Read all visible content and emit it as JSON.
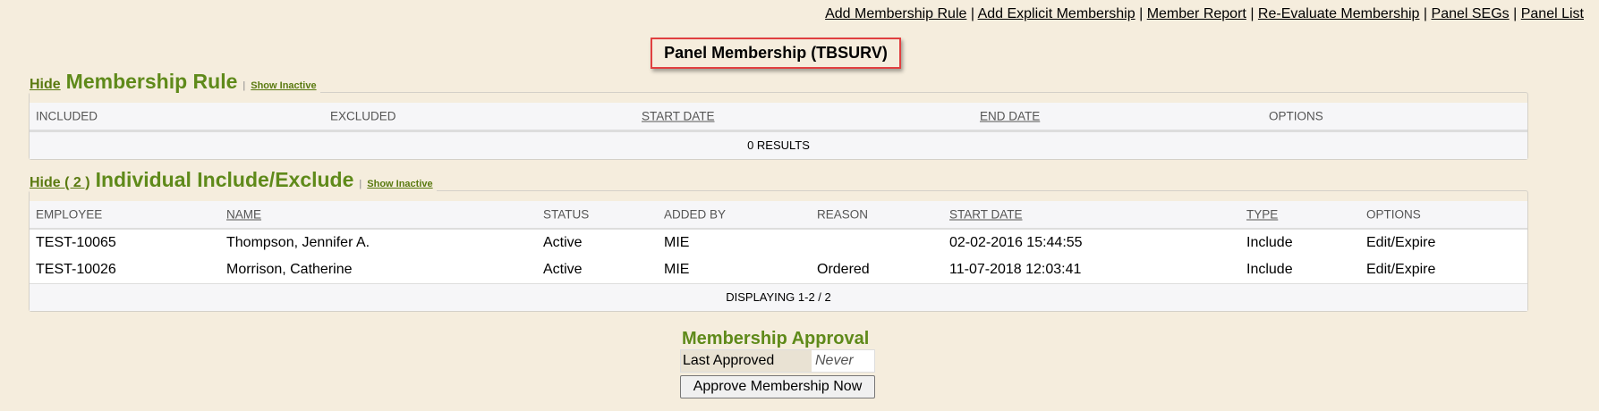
{
  "top_links": [
    "Add Membership Rule",
    "Add Explicit Membership",
    "Member Report",
    "Re-Evaluate Membership",
    "Panel SEGs",
    "Panel List"
  ],
  "separator": "|",
  "page_title": "Panel Membership (TBSURV)",
  "rule_section": {
    "hide": "Hide",
    "title": "Membership Rule",
    "show_inactive": "Show Inactive",
    "columns": [
      "INCLUDED",
      "EXCLUDED",
      "START DATE",
      "END DATE",
      "OPTIONS"
    ],
    "footer": "0 RESULTS"
  },
  "individual_section": {
    "hide": "Hide ( 2 )",
    "title": "Individual Include/Exclude",
    "show_inactive": "Show Inactive",
    "columns": [
      "EMPLOYEE",
      "NAME",
      "STATUS",
      "ADDED BY",
      "REASON",
      "START DATE",
      "TYPE",
      "OPTIONS"
    ],
    "rows": [
      [
        "TEST-10065",
        "Thompson, Jennifer A.",
        "Active",
        "MIE",
        "",
        "02-02-2016 15:44:55",
        "Include",
        "Edit/Expire"
      ],
      [
        "TEST-10026",
        "Morrison, Catherine",
        "Active",
        "MIE",
        "Ordered",
        "11-07-2018 12:03:41",
        "Include",
        "Edit/Expire"
      ]
    ],
    "footer": "DISPLAYING 1-2 / 2"
  },
  "approval": {
    "title": "Membership Approval",
    "label": "Last Approved",
    "value": "Never",
    "button": "Approve Membership Now"
  },
  "colors": {
    "background": "#f5eddd",
    "accent_green": "#5f8a1a",
    "title_border": "#e04040"
  }
}
